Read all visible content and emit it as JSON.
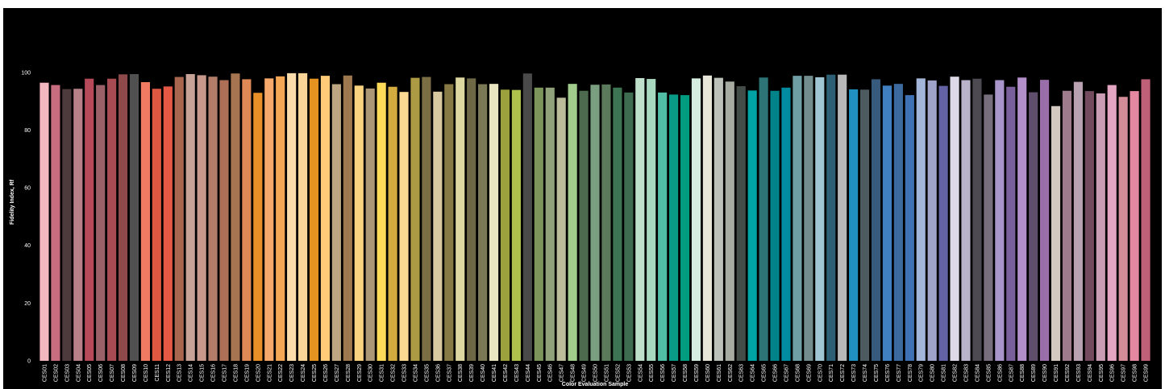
{
  "chart_data": {
    "type": "bar",
    "title": "",
    "xlabel": "Color Evaluation Sample",
    "ylabel": "Fidelity Index, Rf",
    "ylim": [
      0,
      110
    ],
    "yticks": [
      0,
      20,
      40,
      60,
      80,
      100
    ],
    "grid": false,
    "background": "#000000",
    "categories": [
      "CES01",
      "CES02",
      "CES03",
      "CES04",
      "CES05",
      "CES06",
      "CES07",
      "CES08",
      "CES09",
      "CES10",
      "CES11",
      "CES12",
      "CES13",
      "CES14",
      "CES15",
      "CES16",
      "CES17",
      "CES18",
      "CES19",
      "CES20",
      "CES21",
      "CES22",
      "CES23",
      "CES24",
      "CES25",
      "CES26",
      "CES27",
      "CES28",
      "CES29",
      "CES30",
      "CES31",
      "CES32",
      "CES33",
      "CES34",
      "CES35",
      "CES36",
      "CES37",
      "CES38",
      "CES39",
      "CES40",
      "CES41",
      "CES42",
      "CES43",
      "CES44",
      "CES45",
      "CES46",
      "CES47",
      "CES48",
      "CES49",
      "CES50",
      "CES51",
      "CES52",
      "CES53",
      "CES54",
      "CES55",
      "CES56",
      "CES57",
      "CES58",
      "CES59",
      "CES60",
      "CES61",
      "CES62",
      "CES63",
      "CES64",
      "CES65",
      "CES66",
      "CES67",
      "CES68",
      "CES69",
      "CES70",
      "CES71",
      "CES72",
      "CES73",
      "CES74",
      "CES75",
      "CES76",
      "CES77",
      "CES78",
      "CES79",
      "CES80",
      "CES81",
      "CES82",
      "CES83",
      "CES84",
      "CES85",
      "CES86",
      "CES87",
      "CES88",
      "CES89",
      "CES90",
      "CES91",
      "CES92",
      "CES93",
      "CES94",
      "CES95",
      "CES96",
      "CES97",
      "CES98",
      "CES99"
    ],
    "values": [
      96.4,
      95.6,
      94.2,
      94.3,
      97.8,
      95.6,
      97.8,
      99.3,
      99.4,
      96.6,
      94.3,
      95.1,
      98.4,
      99.4,
      99.0,
      98.5,
      97.3,
      99.6,
      97.6,
      92.9,
      97.9,
      98.6,
      99.7,
      99.7,
      97.8,
      98.8,
      95.9,
      98.9,
      95.4,
      94.4,
      96.4,
      95.0,
      93.2,
      98.1,
      98.4,
      93.3,
      95.9,
      98.2,
      97.9,
      95.9,
      96.0,
      94.0,
      93.9,
      99.6,
      94.7,
      94.7,
      91.2,
      96.0,
      93.6,
      95.7,
      95.8,
      94.7,
      93.0,
      98.0,
      97.7,
      93.0,
      92.3,
      92.1,
      97.9,
      98.9,
      98.1,
      96.8,
      95.2,
      93.7,
      98.2,
      93.6,
      94.7,
      98.8,
      98.8,
      98.3,
      99.2,
      99.2,
      94.1,
      94.0,
      97.6,
      95.4,
      96.0,
      92.1,
      97.9,
      97.2,
      95.3,
      98.5,
      97.3,
      97.8,
      92.3,
      97.3,
      95.0,
      98.2,
      93.1,
      97.4,
      88.3,
      93.6,
      96.7,
      93.5,
      92.7,
      95.6,
      91.5,
      93.5,
      97.6
    ],
    "colors": [
      "#f2b8c0",
      "#c86d80",
      "#4d3a3c",
      "#b88088",
      "#b64a5a",
      "#9a6268",
      "#a84b52",
      "#8e4a4b",
      "#505050",
      "#f17b62",
      "#de5841",
      "#e55843",
      "#a9664f",
      "#c7a297",
      "#c8988b",
      "#b47d6a",
      "#ad7056",
      "#a77451",
      "#df8a56",
      "#e98f28",
      "#f6a96b",
      "#f6a755",
      "#fcdcaa",
      "#fad597",
      "#e59320",
      "#ffcb79",
      "#bea683",
      "#9e784f",
      "#fad380",
      "#ab9676",
      "#fdda58",
      "#d4ab3e",
      "#fad993",
      "#ac9a44",
      "#7b6e45",
      "#d9c9a1",
      "#877a45",
      "#ddd8a1",
      "#6e6846",
      "#7a7855",
      "#e9e6c1",
      "#9ca13e",
      "#b0c04c",
      "#4a4a4a",
      "#7c955b",
      "#8fa27a",
      "#babc9a",
      "#a2cc8c",
      "#4e6a4e",
      "#7a9e80",
      "#5b7a5b",
      "#3d7552",
      "#3e6c51",
      "#bfe0cb",
      "#a9d8c0",
      "#52bda5",
      "#0a9b86",
      "#009c80",
      "#d5eee1",
      "#e8e6d8",
      "#bcc1ba",
      "#a6aca2",
      "#444c48",
      "#00a4a5",
      "#2c7475",
      "#018389",
      "#008ca0",
      "#6f9ea5",
      "#738d8e",
      "#a1c6d3",
      "#2d6074",
      "#b8b8b8",
      "#2090c0",
      "#4d5a60",
      "#385b7d",
      "#407fc0",
      "#3d6a9e",
      "#3f72b5",
      "#a3b5d8",
      "#9fa3c8",
      "#6262a5",
      "#ddd9e7",
      "#b8b2cb",
      "#4d4a52",
      "#786f7e",
      "#a895ca",
      "#79609b",
      "#b28fc8",
      "#5f4e6b",
      "#9a6ea8",
      "#d3c9c0",
      "#9e7a8d",
      "#b8a1b0",
      "#744a5f",
      "#cb9db4",
      "#e4a5c3",
      "#d48c99",
      "#e388a0",
      "#c06078"
    ]
  }
}
